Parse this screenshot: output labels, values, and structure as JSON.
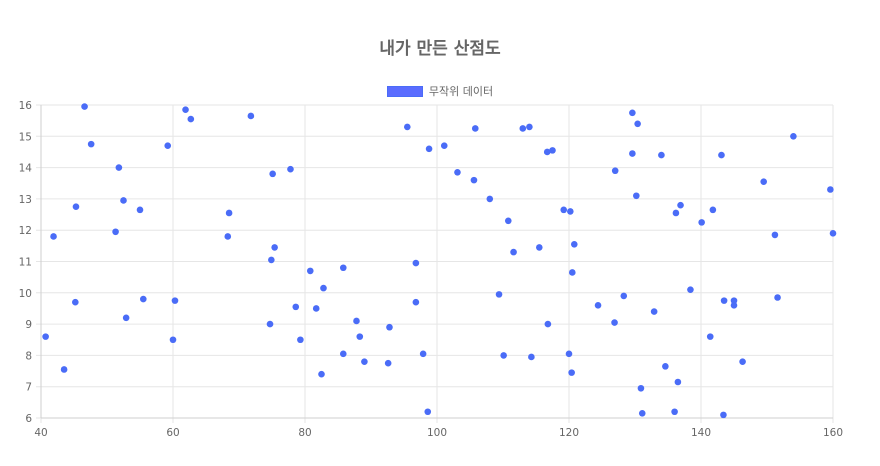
{
  "chart_data": {
    "type": "scatter",
    "title": "내가 만든 산점도",
    "legend_position": "top",
    "grid": true,
    "xlim": [
      40,
      160
    ],
    "ylim": [
      6,
      16
    ],
    "x_ticks": [
      "40",
      "60",
      "80",
      "100",
      "120",
      "140",
      "160"
    ],
    "y_ticks": [
      "6",
      "7",
      "8",
      "9",
      "10",
      "11",
      "12",
      "13",
      "14",
      "15",
      "16"
    ],
    "point_color": "#4a6cf7",
    "legend_swatch_color": "#5a6cff",
    "series": [
      {
        "name": "무작위 데이터",
        "points": [
          [
            40.7,
            8.6
          ],
          [
            41.9,
            11.8
          ],
          [
            43.5,
            7.55
          ],
          [
            45.2,
            9.7
          ],
          [
            45.3,
            12.75
          ],
          [
            46.6,
            15.95
          ],
          [
            47.6,
            14.75
          ],
          [
            51.3,
            11.95
          ],
          [
            51.8,
            14.0
          ],
          [
            52.5,
            12.95
          ],
          [
            52.9,
            9.2
          ],
          [
            55.0,
            12.65
          ],
          [
            55.5,
            9.8
          ],
          [
            59.2,
            14.7
          ],
          [
            60.0,
            8.5
          ],
          [
            60.3,
            9.75
          ],
          [
            61.9,
            15.85
          ],
          [
            62.7,
            15.55
          ],
          [
            68.3,
            11.8
          ],
          [
            68.5,
            12.55
          ],
          [
            71.8,
            15.65
          ],
          [
            74.7,
            9.0
          ],
          [
            74.9,
            11.05
          ],
          [
            75.1,
            13.8
          ],
          [
            75.4,
            11.45
          ],
          [
            77.8,
            13.95
          ],
          [
            78.6,
            9.55
          ],
          [
            79.3,
            8.5
          ],
          [
            80.8,
            10.7
          ],
          [
            81.7,
            9.5
          ],
          [
            82.5,
            7.4
          ],
          [
            82.8,
            10.15
          ],
          [
            85.8,
            8.05
          ],
          [
            85.8,
            10.8
          ],
          [
            87.8,
            9.1
          ],
          [
            88.3,
            8.6
          ],
          [
            89.0,
            7.8
          ],
          [
            92.6,
            7.75
          ],
          [
            92.8,
            8.9
          ],
          [
            95.5,
            15.3
          ],
          [
            96.8,
            10.95
          ],
          [
            96.8,
            9.7
          ],
          [
            97.9,
            8.05
          ],
          [
            98.6,
            6.2
          ],
          [
            98.8,
            14.6
          ],
          [
            101.1,
            14.7
          ],
          [
            103.1,
            13.85
          ],
          [
            105.6,
            13.6
          ],
          [
            105.8,
            15.25
          ],
          [
            108.0,
            13.0
          ],
          [
            109.4,
            9.95
          ],
          [
            110.1,
            8.0
          ],
          [
            110.8,
            12.3
          ],
          [
            111.6,
            11.3
          ],
          [
            113.0,
            15.25
          ],
          [
            114.0,
            15.3
          ],
          [
            114.3,
            7.95
          ],
          [
            115.5,
            11.45
          ],
          [
            116.7,
            14.5
          ],
          [
            117.5,
            14.55
          ],
          [
            116.8,
            9.0
          ],
          [
            119.2,
            12.65
          ],
          [
            120.0,
            8.05
          ],
          [
            120.2,
            12.6
          ],
          [
            120.4,
            7.45
          ],
          [
            120.5,
            10.65
          ],
          [
            120.8,
            11.55
          ],
          [
            124.4,
            9.6
          ],
          [
            126.9,
            9.05
          ],
          [
            127.0,
            13.9
          ],
          [
            128.3,
            9.9
          ],
          [
            129.6,
            15.75
          ],
          [
            129.6,
            14.45
          ],
          [
            130.2,
            13.1
          ],
          [
            130.4,
            15.4
          ],
          [
            130.9,
            6.95
          ],
          [
            131.1,
            6.15
          ],
          [
            132.9,
            9.4
          ],
          [
            134.0,
            14.4
          ],
          [
            134.6,
            7.65
          ],
          [
            136.0,
            6.2
          ],
          [
            136.2,
            12.55
          ],
          [
            136.5,
            7.15
          ],
          [
            136.9,
            12.8
          ],
          [
            138.4,
            10.1
          ],
          [
            140.1,
            12.25
          ],
          [
            141.4,
            8.6
          ],
          [
            141.8,
            12.65
          ],
          [
            143.1,
            14.4
          ],
          [
            143.4,
            6.1
          ],
          [
            143.5,
            9.75
          ],
          [
            145.0,
            9.6
          ],
          [
            145.0,
            9.75
          ],
          [
            146.3,
            7.8
          ],
          [
            149.5,
            13.55
          ],
          [
            151.2,
            11.85
          ],
          [
            151.6,
            9.85
          ],
          [
            154.0,
            15.0
          ],
          [
            159.6,
            13.3
          ],
          [
            160.0,
            11.9
          ]
        ]
      }
    ]
  }
}
